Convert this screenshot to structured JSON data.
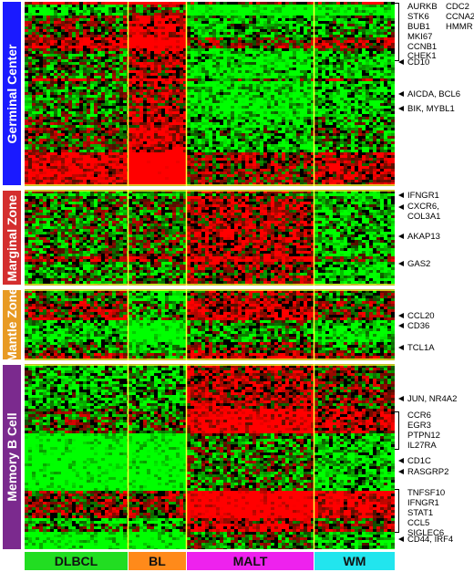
{
  "sections": [
    {
      "label": "Germinal Center",
      "color": "#1a1aff"
    },
    {
      "label": "Marginal Zone",
      "color": "#d42e2e"
    },
    {
      "label": "Mantle Zone",
      "color": "#e89a23"
    },
    {
      "label": "Memory B Cell",
      "color": "#7b2a8e"
    }
  ],
  "groups": [
    {
      "label": "DLBCL",
      "color": "#22dd22"
    },
    {
      "label": "BL",
      "color": "#ff8a1a"
    },
    {
      "label": "MALT",
      "color": "#ee22ee"
    },
    {
      "label": "WM",
      "color": "#22e5ee"
    }
  ],
  "annotations": [
    {
      "lines": [
        "AURKB",
        "STK6",
        "BUB1",
        "MKI67",
        "CCNB1",
        "CHEK1"
      ],
      "style": "bracket"
    },
    {
      "lines": [
        "CDC2",
        "CCNA2",
        "HMMR"
      ],
      "style": "text"
    },
    {
      "lines": [
        "CD10"
      ],
      "style": "arrow"
    },
    {
      "lines": [
        "AICDA, BCL6"
      ],
      "style": "arrow"
    },
    {
      "lines": [
        "BIK, MYBL1"
      ],
      "style": "arrow"
    },
    {
      "lines": [
        "IFNGR1"
      ],
      "style": "arrow"
    },
    {
      "lines": [
        "CXCR6,",
        "COL3A1"
      ],
      "style": "arrow"
    },
    {
      "lines": [
        "AKAP13"
      ],
      "style": "arrow"
    },
    {
      "lines": [
        "GAS2"
      ],
      "style": "arrow"
    },
    {
      "lines": [
        "CCL20"
      ],
      "style": "arrow"
    },
    {
      "lines": [
        "CD36"
      ],
      "style": "arrow"
    },
    {
      "lines": [
        "TCL1A"
      ],
      "style": "arrow"
    },
    {
      "lines": [
        "JUN, NR4A2"
      ],
      "style": "arrow"
    },
    {
      "lines": [
        "CCR6",
        "EGR3",
        "PTPN12",
        "IL27RA"
      ],
      "style": "bracket"
    },
    {
      "lines": [
        "CD1C"
      ],
      "style": "arrow"
    },
    {
      "lines": [
        "RASGRP2"
      ],
      "style": "arrow"
    },
    {
      "lines": [
        "TNFSF10",
        "IFNGR1",
        "STAT1",
        "CCL5",
        "SIGLEC6"
      ],
      "style": "bracket"
    },
    {
      "lines": [
        "CD44, IRF4"
      ],
      "style": "arrow"
    }
  ],
  "colors": {
    "high": "#ff1a1a",
    "low": "#1aff1a",
    "mid": "#000000",
    "divider": "#ffff33"
  }
}
